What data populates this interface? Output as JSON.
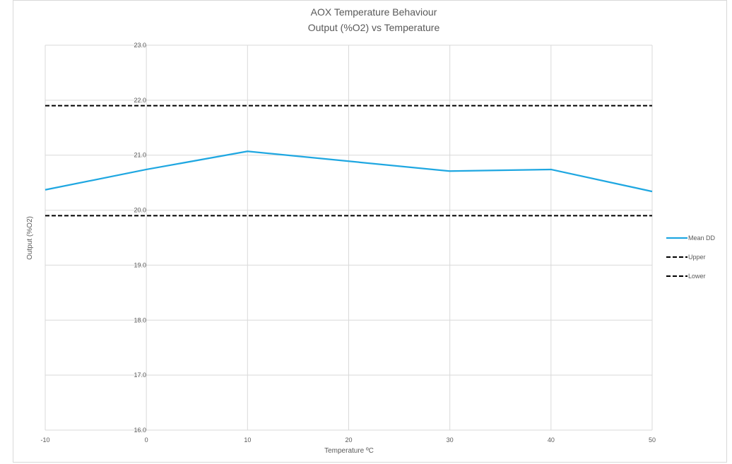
{
  "chart_data": {
    "type": "line",
    "title": "AOX Temperature Behaviour",
    "subtitle": "Output (%O2) vs Temperature",
    "xlabel": "Temperature ºC",
    "ylabel": "Output (%O2)",
    "xlim": [
      -10,
      50
    ],
    "ylim": [
      16.0,
      23.0
    ],
    "x_ticks": [
      "-10",
      "0",
      "10",
      "20",
      "30",
      "40",
      "50"
    ],
    "y_ticks": [
      "16.0",
      "17.0",
      "18.0",
      "19.0",
      "20.0",
      "21.0",
      "22.0",
      "23.0"
    ],
    "grid": true,
    "legend_position": "right",
    "series": [
      {
        "name": "Mean DD",
        "color": "#1fa7e1",
        "style": "solid",
        "x": [
          -10,
          0,
          10,
          20,
          30,
          40,
          50
        ],
        "y": [
          20.37,
          20.74,
          21.07,
          20.89,
          20.71,
          20.74,
          20.34
        ]
      },
      {
        "name": "Upper",
        "color": "#000000",
        "style": "dashed",
        "x": [
          -10,
          50
        ],
        "y": [
          21.9,
          21.9
        ]
      },
      {
        "name": "Lower",
        "color": "#000000",
        "style": "dashed",
        "x": [
          -10,
          50
        ],
        "y": [
          19.9,
          19.9
        ]
      }
    ]
  }
}
